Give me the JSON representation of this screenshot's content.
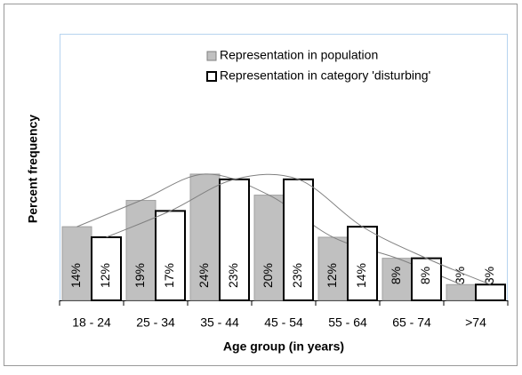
{
  "chart_data": {
    "type": "bar",
    "categories": [
      "18 - 24",
      "25 - 34",
      "35 - 44",
      "45 - 54",
      "55 - 64",
      "65 - 74",
      ">74"
    ],
    "series": [
      {
        "name": "Representation in population",
        "color": "#c0c0c0",
        "values": [
          14,
          19,
          24,
          20,
          12,
          8,
          3
        ],
        "value_labels": [
          "14%",
          "19%",
          "24%",
          "20%",
          "12%",
          "8%",
          "3%"
        ]
      },
      {
        "name": "Representation in category 'disturbing'",
        "color": "#ffffff",
        "values": [
          12,
          17,
          23,
          23,
          14,
          8,
          3
        ],
        "value_labels": [
          "12%",
          "17%",
          "23%",
          "23%",
          "14%",
          "8%",
          "3%"
        ]
      }
    ],
    "xlabel": "Age group (in years)",
    "ylabel": "Percent frequency",
    "ylim": [
      0,
      50
    ],
    "trend_lines": true
  }
}
